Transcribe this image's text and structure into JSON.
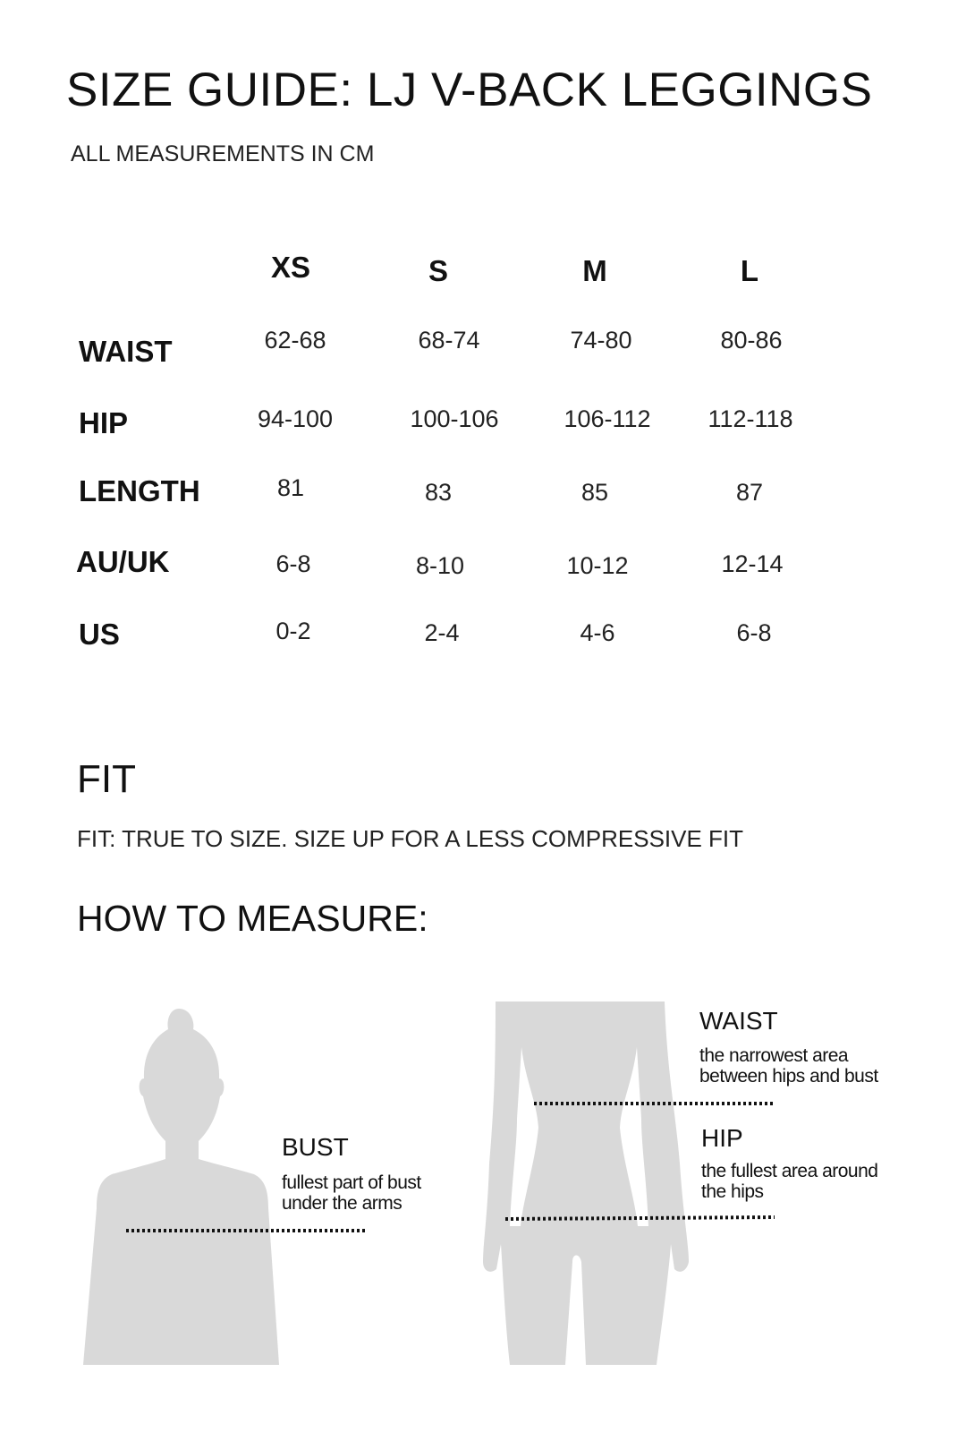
{
  "title": "SIZE GUIDE: LJ V-BACK LEGGINGS",
  "subtitle": "ALL MEASUREMENTS IN CM",
  "size_table": {
    "columns": [
      "XS",
      "S",
      "M",
      "L"
    ],
    "rows": [
      {
        "label": "WAIST",
        "values": [
          "62-68",
          "68-74",
          "74-80",
          "80-86"
        ]
      },
      {
        "label": "HIP",
        "values": [
          "94-100",
          "100-106",
          "106-112",
          "112-118"
        ]
      },
      {
        "label": "LENGTH",
        "values": [
          "81",
          "83",
          "85",
          "87"
        ]
      },
      {
        "label": "AU/UK",
        "values": [
          "6-8",
          "8-10",
          "10-12",
          "12-14"
        ]
      },
      {
        "label": "US",
        "values": [
          "0-2",
          "2-4",
          "4-6",
          "6-8"
        ]
      }
    ]
  },
  "fit": {
    "heading": "FIT",
    "text": "FIT: TRUE TO SIZE. SIZE UP FOR A LESS COMPRESSIVE FIT"
  },
  "how_to_measure": {
    "heading": "HOW TO MEASURE:",
    "bust": {
      "label": "BUST",
      "desc_line1": "fullest part of bust",
      "desc_line2": "under the arms"
    },
    "waist": {
      "label": "WAIST",
      "desc_line1": "the narrowest area",
      "desc_line2": "between hips and bust"
    },
    "hip": {
      "label": "HIP",
      "desc_line1": "the fullest area around",
      "desc_line2": "the hips"
    }
  },
  "colors": {
    "silhouette": "#d9d9d9",
    "text": "#111111"
  }
}
